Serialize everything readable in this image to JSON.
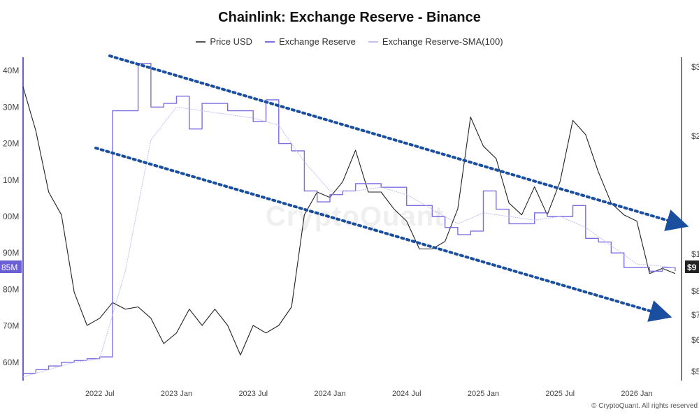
{
  "title": "Chainlink: Exchange Reserve - Binance",
  "legend": [
    {
      "label": "Price USD",
      "color": "#555555"
    },
    {
      "label": "Exchange Reserve",
      "color": "#7b6fe0"
    },
    {
      "label": "Exchange Reserve-SMA(100)",
      "color": "#c4bff0"
    }
  ],
  "watermark": "CryptoQuant",
  "credit": "© CryptoQuant. All rights reserved",
  "badges": {
    "reserve_current": "85M",
    "price_current": "$9"
  },
  "chart_data": {
    "type": "line",
    "title": "Chainlink: Exchange Reserve - Binance",
    "x_ticks": [
      "2022 Jul",
      "2023 Jan",
      "2023 Jul",
      "2024 Jan",
      "2024 Jul",
      "2025 Jan",
      "2025 Jul",
      "2026 Jan"
    ],
    "x_range": [
      "2022-01",
      "2026-04"
    ],
    "left_axis": {
      "label": "",
      "ticks": [
        "40M",
        "30M",
        "20M",
        "10M",
        "00M",
        "90M",
        "80M",
        "70M",
        "60M"
      ],
      "ylim": [
        55,
        145
      ]
    },
    "right_axis": {
      "label": "",
      "ticks": [
        "$3",
        "$2",
        "$1",
        "$8",
        "$7",
        "$6",
        "$5"
      ]
    },
    "series": [
      {
        "name": "Price USD",
        "axis": "right",
        "color": "#222222",
        "values": [
          [
            "2022-01",
            29
          ],
          [
            "2022-02",
            22
          ],
          [
            "2022-03",
            15
          ],
          [
            "2022-04",
            13
          ],
          [
            "2022-05",
            8
          ],
          [
            "2022-06",
            6.5
          ],
          [
            "2022-07",
            6.8
          ],
          [
            "2022-08",
            7.5
          ],
          [
            "2022-09",
            7.2
          ],
          [
            "2022-10",
            7.3
          ],
          [
            "2022-11",
            6.8
          ],
          [
            "2022-12",
            5.8
          ],
          [
            "2023-01",
            6.2
          ],
          [
            "2023-02",
            7.2
          ],
          [
            "2023-03",
            6.5
          ],
          [
            "2023-04",
            7.2
          ],
          [
            "2023-05",
            6.5
          ],
          [
            "2023-06",
            5.4
          ],
          [
            "2023-07",
            6.5
          ],
          [
            "2023-08",
            6.2
          ],
          [
            "2023-09",
            6.5
          ],
          [
            "2023-10",
            7.3
          ],
          [
            "2023-11",
            13
          ],
          [
            "2023-12",
            15
          ],
          [
            "2024-01",
            14.5
          ],
          [
            "2024-02",
            16
          ],
          [
            "2024-03",
            19.5
          ],
          [
            "2024-04",
            15
          ],
          [
            "2024-05",
            15
          ],
          [
            "2024-06",
            13.5
          ],
          [
            "2024-07",
            12.5
          ],
          [
            "2024-08",
            10.5
          ],
          [
            "2024-09",
            10.5
          ],
          [
            "2024-10",
            11
          ],
          [
            "2024-11",
            13.5
          ],
          [
            "2024-12",
            24
          ],
          [
            "2025-01",
            20
          ],
          [
            "2025-02",
            18.5
          ],
          [
            "2025-03",
            14
          ],
          [
            "2025-04",
            13
          ],
          [
            "2025-05",
            15.5
          ],
          [
            "2025-06",
            13
          ],
          [
            "2025-07",
            16
          ],
          [
            "2025-08",
            23.5
          ],
          [
            "2025-09",
            21.5
          ],
          [
            "2025-10",
            17
          ],
          [
            "2025-11",
            14
          ],
          [
            "2025-12",
            13
          ],
          [
            "2026-01",
            12.5
          ],
          [
            "2026-02",
            9
          ],
          [
            "2026-03",
            9.3
          ],
          [
            "2026-04",
            9
          ]
        ]
      },
      {
        "name": "Exchange Reserve",
        "axis": "left",
        "color": "#7b6fe0",
        "values": [
          [
            "2022-01",
            57
          ],
          [
            "2022-02",
            58
          ],
          [
            "2022-03",
            59
          ],
          [
            "2022-04",
            60
          ],
          [
            "2022-05",
            60.5
          ],
          [
            "2022-06",
            61
          ],
          [
            "2022-07",
            61.5
          ],
          [
            "2022-08",
            129
          ],
          [
            "2022-09",
            129
          ],
          [
            "2022-10",
            142
          ],
          [
            "2022-11",
            130
          ],
          [
            "2022-12",
            131
          ],
          [
            "2023-01",
            133
          ],
          [
            "2023-02",
            124
          ],
          [
            "2023-03",
            131
          ],
          [
            "2023-04",
            131
          ],
          [
            "2023-05",
            129
          ],
          [
            "2023-06",
            129
          ],
          [
            "2023-07",
            126
          ],
          [
            "2023-08",
            132
          ],
          [
            "2023-09",
            120
          ],
          [
            "2023-10",
            118
          ],
          [
            "2023-11",
            107
          ],
          [
            "2023-12",
            104
          ],
          [
            "2024-01",
            106
          ],
          [
            "2024-02",
            107
          ],
          [
            "2024-03",
            109
          ],
          [
            "2024-04",
            109
          ],
          [
            "2024-05",
            108
          ],
          [
            "2024-06",
            108
          ],
          [
            "2024-07",
            103
          ],
          [
            "2024-08",
            103
          ],
          [
            "2024-09",
            100
          ],
          [
            "2024-10",
            97
          ],
          [
            "2024-11",
            95
          ],
          [
            "2024-12",
            96
          ],
          [
            "2025-01",
            107
          ],
          [
            "2025-02",
            102
          ],
          [
            "2025-03",
            98
          ],
          [
            "2025-04",
            98
          ],
          [
            "2025-05",
            101
          ],
          [
            "2025-06",
            100
          ],
          [
            "2025-07",
            100
          ],
          [
            "2025-08",
            103
          ],
          [
            "2025-09",
            94
          ],
          [
            "2025-10",
            93
          ],
          [
            "2025-11",
            90
          ],
          [
            "2025-12",
            86
          ],
          [
            "2026-01",
            86
          ],
          [
            "2026-02",
            85
          ],
          [
            "2026-03",
            86
          ],
          [
            "2026-04",
            85
          ]
        ]
      },
      {
        "name": "Exchange Reserve-SMA(100)",
        "axis": "left",
        "color": "#c4bff0",
        "values": [
          [
            "2022-01",
            56
          ],
          [
            "2022-03",
            58
          ],
          [
            "2022-05",
            60
          ],
          [
            "2022-07",
            61
          ],
          [
            "2022-09",
            85
          ],
          [
            "2022-11",
            121
          ],
          [
            "2023-01",
            130
          ],
          [
            "2023-03",
            129
          ],
          [
            "2023-05",
            128
          ],
          [
            "2023-07",
            127
          ],
          [
            "2023-09",
            125
          ],
          [
            "2023-11",
            115
          ],
          [
            "2024-01",
            107
          ],
          [
            "2024-03",
            107
          ],
          [
            "2024-05",
            108
          ],
          [
            "2024-07",
            106
          ],
          [
            "2024-09",
            102
          ],
          [
            "2024-11",
            98
          ],
          [
            "2025-01",
            101
          ],
          [
            "2025-03",
            100
          ],
          [
            "2025-05",
            99
          ],
          [
            "2025-07",
            100
          ],
          [
            "2025-09",
            97
          ],
          [
            "2025-11",
            92
          ],
          [
            "2026-01",
            87
          ],
          [
            "2026-04",
            86
          ]
        ]
      }
    ],
    "annotations": [
      {
        "type": "arrow",
        "style": "dotted",
        "color": "#1a4fa0",
        "from": [
          "2022-09",
          146
        ],
        "to": [
          "2026-04",
          98
        ]
      },
      {
        "type": "arrow",
        "style": "dotted",
        "color": "#1a4fa0",
        "from": [
          "2022-08",
          120
        ],
        "to": [
          "2026-04",
          76
        ]
      }
    ]
  }
}
